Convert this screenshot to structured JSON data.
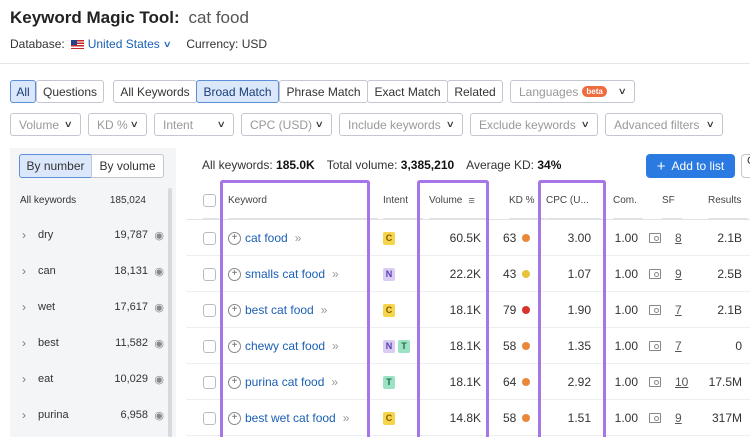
{
  "header": {
    "title": "Keyword Magic Tool:",
    "keyword": "cat food",
    "database_label": "Database:",
    "database_value": "United States",
    "currency": "Currency: USD"
  },
  "match_tabs": [
    "All",
    "Questions",
    "All Keywords",
    "Broad Match",
    "Phrase Match",
    "Exact Match",
    "Related"
  ],
  "languages": {
    "label": "Languages",
    "badge": "beta"
  },
  "filters": [
    "Volume",
    "KD %",
    "Intent",
    "CPC (USD)",
    "Include keywords",
    "Exclude keywords",
    "Advanced filters"
  ],
  "sidebar": {
    "toggle_number": "By number",
    "toggle_volume": "By volume",
    "head_label": "All keywords",
    "head_count": "185,024",
    "items": [
      {
        "label": "dry",
        "count": "19,787"
      },
      {
        "label": "can",
        "count": "18,131"
      },
      {
        "label": "wet",
        "count": "17,617"
      },
      {
        "label": "best",
        "count": "11,582"
      },
      {
        "label": "eat",
        "count": "10,029"
      },
      {
        "label": "purina",
        "count": "6,958"
      }
    ]
  },
  "summary": {
    "all_label": "All keywords:",
    "all_value": "185.0K",
    "vol_label": "Total volume:",
    "vol_value": "3,385,210",
    "kd_label": "Average KD:",
    "kd_value": "34%"
  },
  "add_button": "Add to list",
  "cut_button": "C",
  "columns": {
    "keyword": "Keyword",
    "intent": "Intent",
    "volume": "Volume",
    "kd": "KD %",
    "cpc": "CPC (U...",
    "com": "Com.",
    "sf": "SF",
    "results": "Results"
  },
  "rows": [
    {
      "keyword": "cat food",
      "intent": [
        "C"
      ],
      "volume": "60.5K",
      "kd": "63",
      "kd_color": "#e8893a",
      "cpc": "3.00",
      "com": "1.00",
      "sf": "8",
      "results": "2.1B"
    },
    {
      "keyword": "smalls cat food",
      "intent": [
        "N"
      ],
      "volume": "22.2K",
      "kd": "43",
      "kd_color": "#e8c33a",
      "cpc": "1.07",
      "com": "1.00",
      "sf": "9",
      "results": "2.5B"
    },
    {
      "keyword": "best cat food",
      "intent": [
        "C"
      ],
      "volume": "18.1K",
      "kd": "79",
      "kd_color": "#d9342b",
      "cpc": "1.90",
      "com": "1.00",
      "sf": "7",
      "results": "2.1B"
    },
    {
      "keyword": "chewy cat food",
      "intent": [
        "N",
        "T"
      ],
      "volume": "18.1K",
      "kd": "58",
      "kd_color": "#e8893a",
      "cpc": "1.35",
      "com": "1.00",
      "sf": "7",
      "results": "0"
    },
    {
      "keyword": "purina cat food",
      "intent": [
        "T"
      ],
      "volume": "18.1K",
      "kd": "64",
      "kd_color": "#e8893a",
      "cpc": "2.92",
      "com": "1.00",
      "sf": "10",
      "results": "17.5M"
    },
    {
      "keyword": "best wet cat food",
      "intent": [
        "C"
      ],
      "volume": "14.8K",
      "kd": "58",
      "kd_color": "#e8893a",
      "cpc": "1.51",
      "com": "1.00",
      "sf": "9",
      "results": "317M"
    }
  ],
  "intent_colors": {
    "C": {
      "bg": "#f7d54a",
      "fg": "#7a5a00"
    },
    "N": {
      "bg": "#d9cdf6",
      "fg": "#5b3fa8"
    },
    "T": {
      "bg": "#9be3c4",
      "fg": "#1c6a47"
    }
  },
  "highlight_color": "#a675e8"
}
